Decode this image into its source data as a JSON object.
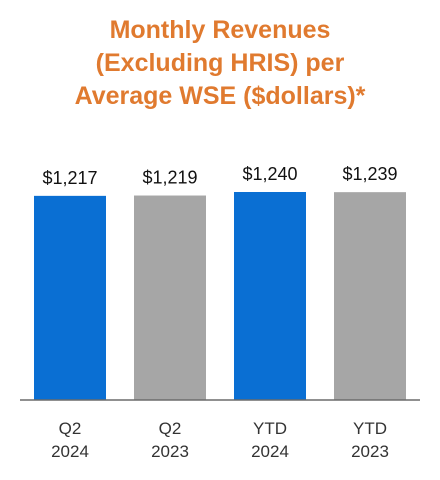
{
  "chart_data": {
    "type": "bar",
    "title_lines": [
      "Monthly Revenues",
      "(Excluding HRIS) per",
      "Average WSE ($dollars)*"
    ],
    "categories": [
      [
        "Q2",
        "2024"
      ],
      [
        "Q2",
        "2023"
      ],
      [
        "YTD",
        "2024"
      ],
      [
        "YTD",
        "2023"
      ]
    ],
    "values": [
      1217,
      1219,
      1240,
      1239
    ],
    "value_labels": [
      "$1,217",
      "$1,219",
      "$1,240",
      "$1,239"
    ],
    "colors": [
      "#0a6fd3",
      "#a6a6a6",
      "#0a6fd3",
      "#a6a6a6"
    ],
    "title_color": "#e07a2f",
    "grid": false
  }
}
